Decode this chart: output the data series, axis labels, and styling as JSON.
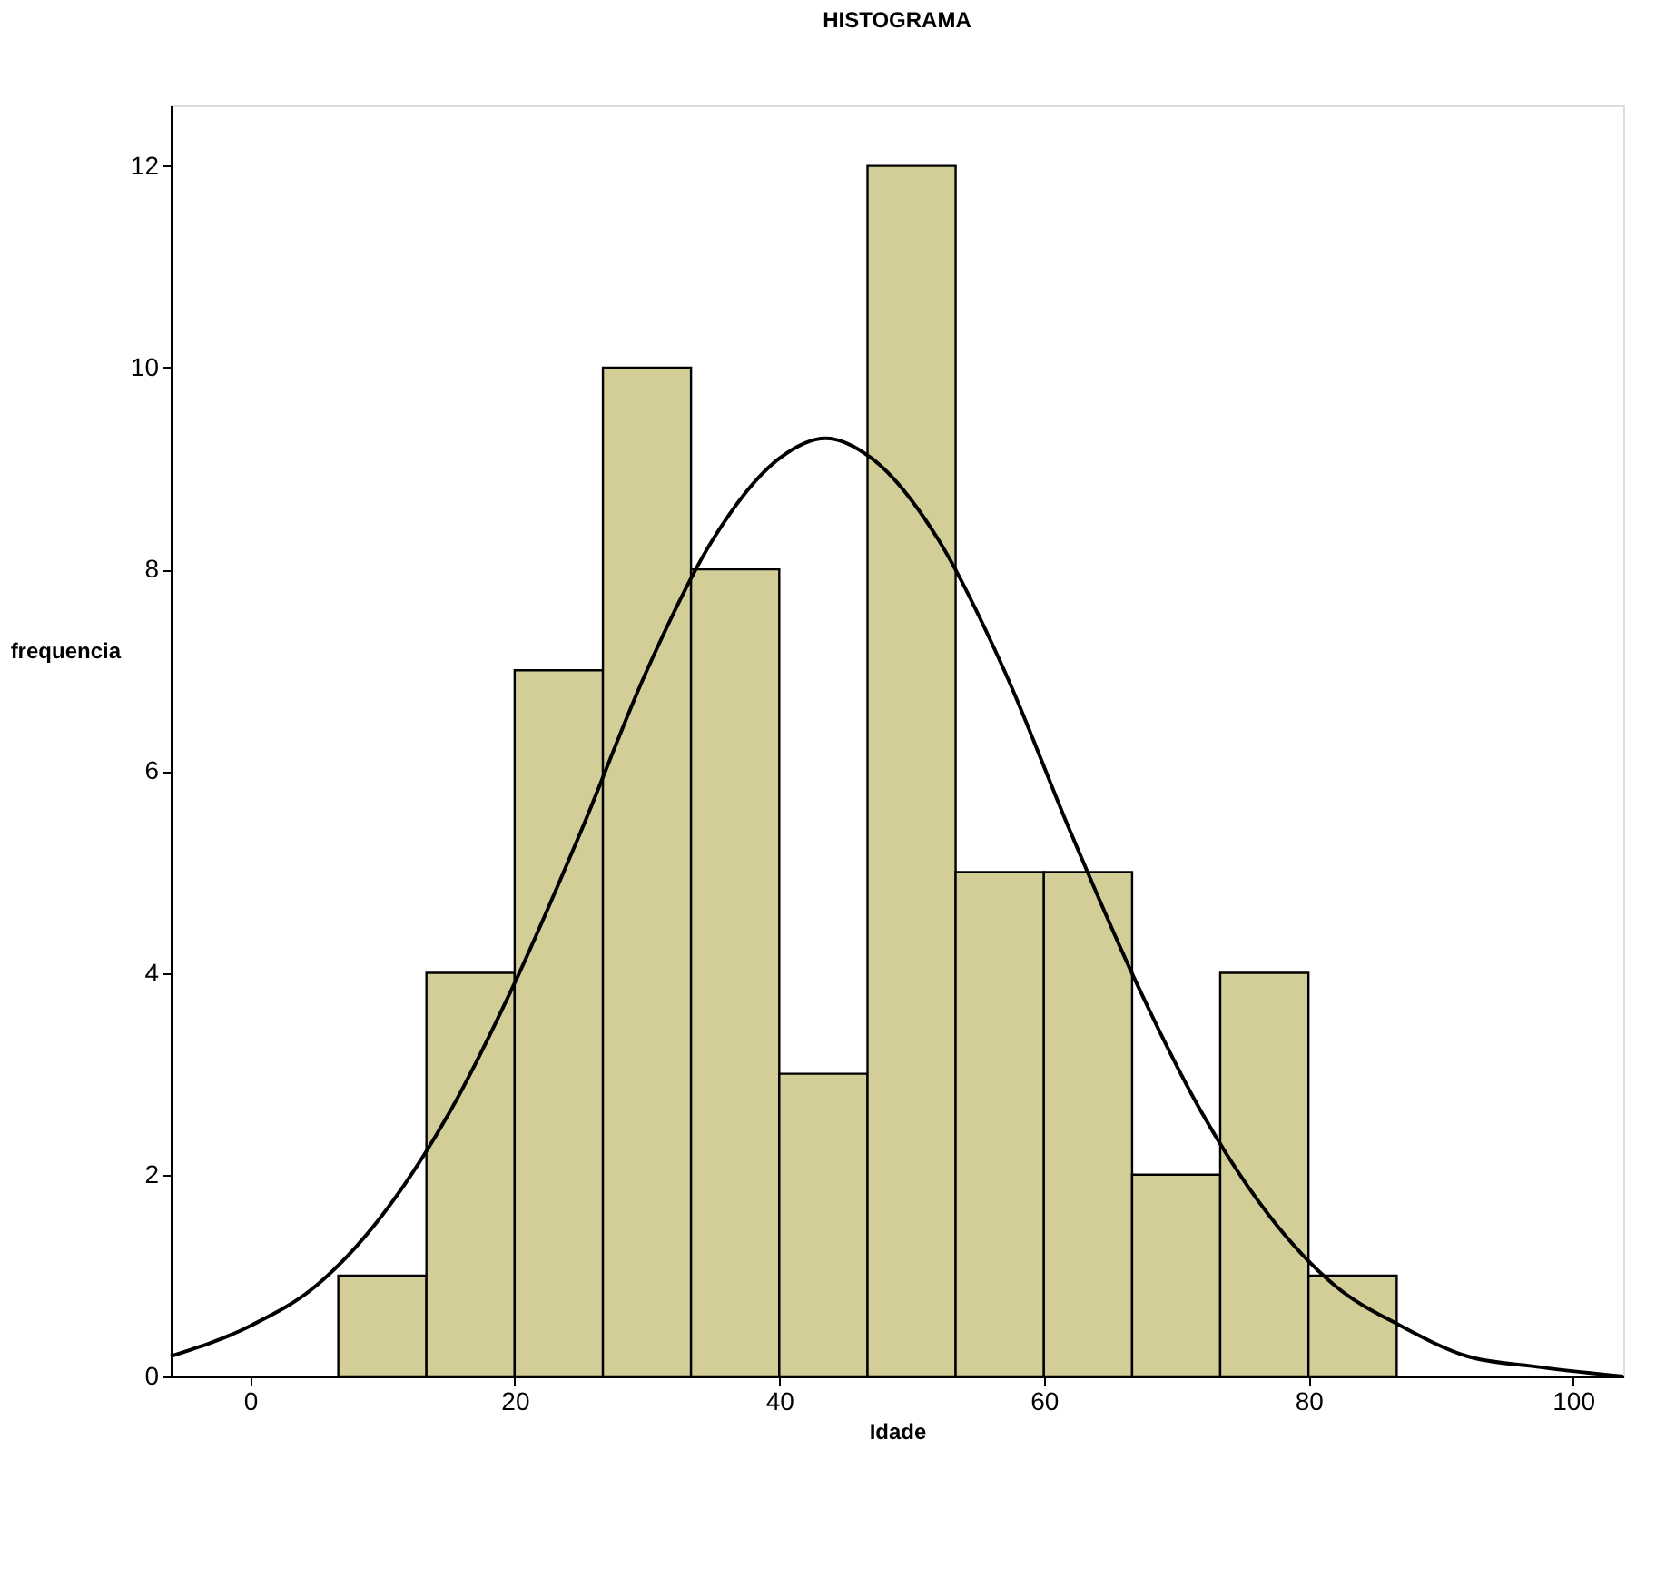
{
  "chart_data": {
    "type": "histogram",
    "title": "HISTOGRAMA",
    "xlabel": "Idade",
    "ylabel": "frequencia",
    "bins": [
      6.67,
      13.33,
      20,
      26.67,
      33.33,
      40,
      46.67,
      53.33,
      60,
      66.67,
      73.33,
      80,
      86.67
    ],
    "values": [
      1,
      4,
      7,
      10,
      8,
      3,
      12,
      5,
      5,
      2,
      4,
      1
    ],
    "color": "#d3ce97",
    "series": [
      {
        "type": "line",
        "color": "#000000",
        "x": [
          -6,
          0,
          5,
          10,
          15,
          20,
          25,
          30,
          35,
          40,
          43.5,
          47,
          52,
          57,
          62,
          67,
          72,
          77,
          82,
          87,
          92,
          97,
          103.8
        ],
        "values": [
          0.2,
          0.5,
          0.9,
          1.6,
          2.6,
          3.9,
          5.4,
          7.0,
          8.3,
          9.1,
          9.3,
          9.1,
          8.3,
          7.0,
          5.4,
          3.9,
          2.6,
          1.6,
          0.9,
          0.5,
          0.2,
          0.1,
          0.0
        ]
      }
    ],
    "xlim": [
      -6,
      103.8
    ],
    "ylim": [
      0,
      12.6
    ],
    "xticks": [
      0,
      20,
      40,
      60,
      80,
      100
    ],
    "yticks": [
      0,
      2,
      4,
      6,
      8,
      10,
      12
    ],
    "grid": false,
    "legend": false
  }
}
